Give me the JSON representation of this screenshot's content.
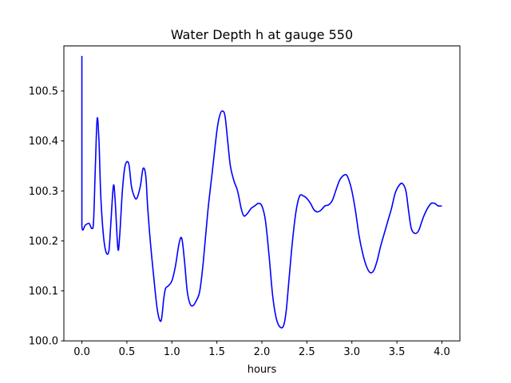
{
  "chart_data": {
    "type": "line",
    "title": "Water Depth h at gauge 550",
    "xlabel": "hours",
    "ylabel": "",
    "xlim": [
      -0.2,
      4.2
    ],
    "ylim": [
      100.0,
      100.59
    ],
    "xticks": [
      0.0,
      0.5,
      1.0,
      1.5,
      2.0,
      2.5,
      3.0,
      3.5,
      4.0
    ],
    "xtick_labels": [
      "0.0",
      "0.5",
      "1.0",
      "1.5",
      "2.0",
      "2.5",
      "3.0",
      "3.5",
      "4.0"
    ],
    "yticks": [
      100.0,
      100.1,
      100.2,
      100.3,
      100.4,
      100.5
    ],
    "ytick_labels": [
      "100.0",
      "100.1",
      "100.2",
      "100.3",
      "100.4",
      "100.5"
    ],
    "grid": false,
    "series": [
      {
        "color": "#0000ff",
        "x": [
          0.0,
          0.0,
          0.0,
          0.04,
          0.08,
          0.11,
          0.13,
          0.15,
          0.17,
          0.19,
          0.21,
          0.24,
          0.27,
          0.3,
          0.32,
          0.35,
          0.37,
          0.4,
          0.42,
          0.45,
          0.48,
          0.52,
          0.55,
          0.58,
          0.61,
          0.65,
          0.68,
          0.71,
          0.73,
          0.76,
          0.8,
          0.84,
          0.88,
          0.91,
          0.93,
          0.96,
          1.0,
          1.04,
          1.08,
          1.11,
          1.14,
          1.17,
          1.2,
          1.23,
          1.27,
          1.31,
          1.35,
          1.4,
          1.45,
          1.5,
          1.53,
          1.56,
          1.59,
          1.62,
          1.65,
          1.69,
          1.73,
          1.77,
          1.8,
          1.84,
          1.88,
          1.92,
          1.96,
          2.0,
          2.04,
          2.08,
          2.12,
          2.16,
          2.2,
          2.24,
          2.27,
          2.3,
          2.34,
          2.38,
          2.42,
          2.46,
          2.5,
          2.54,
          2.58,
          2.62,
          2.66,
          2.7,
          2.74,
          2.78,
          2.82,
          2.86,
          2.9,
          2.94,
          2.97,
          3.0,
          3.04,
          3.08,
          3.12,
          3.16,
          3.2,
          3.24,
          3.28,
          3.32,
          3.36,
          3.4,
          3.44,
          3.48,
          3.52,
          3.56,
          3.6,
          3.63,
          3.66,
          3.7,
          3.74,
          3.77,
          3.8,
          3.84,
          3.88,
          3.92,
          3.96,
          4.0
        ],
        "y": [
          100.57,
          100.35,
          100.23,
          100.232,
          100.235,
          100.225,
          100.24,
          100.35,
          100.445,
          100.4,
          100.29,
          100.21,
          100.177,
          100.18,
          100.23,
          100.31,
          100.28,
          100.185,
          100.21,
          100.3,
          100.35,
          100.355,
          100.31,
          100.29,
          100.285,
          100.31,
          100.345,
          100.33,
          100.27,
          100.2,
          100.125,
          100.06,
          100.04,
          100.085,
          100.105,
          100.11,
          100.12,
          100.15,
          100.195,
          100.205,
          100.16,
          100.1,
          100.075,
          100.07,
          100.08,
          100.1,
          100.16,
          100.26,
          100.34,
          100.42,
          100.45,
          100.46,
          100.45,
          100.4,
          100.35,
          100.32,
          100.3,
          100.265,
          100.25,
          100.255,
          100.265,
          100.27,
          100.275,
          100.27,
          100.24,
          100.17,
          100.09,
          100.045,
          100.028,
          100.03,
          100.06,
          100.12,
          100.2,
          100.26,
          100.29,
          100.29,
          100.285,
          100.275,
          100.262,
          100.258,
          100.262,
          100.27,
          100.272,
          100.28,
          100.3,
          100.32,
          100.33,
          100.332,
          100.32,
          100.3,
          100.26,
          100.21,
          100.175,
          100.15,
          100.137,
          100.14,
          100.16,
          100.19,
          100.215,
          100.24,
          100.265,
          100.295,
          100.31,
          100.315,
          100.3,
          100.26,
          100.225,
          100.215,
          100.22,
          100.235,
          100.25,
          100.265,
          100.275,
          100.275,
          100.27,
          100.27
        ]
      }
    ]
  }
}
